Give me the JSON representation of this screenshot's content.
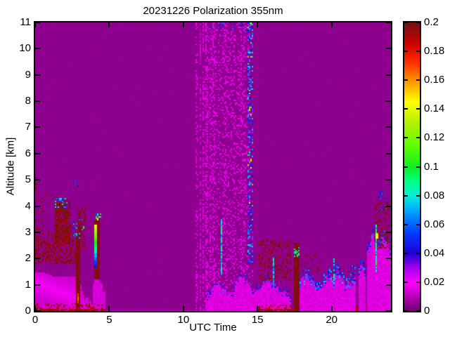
{
  "chart_data": {
    "type": "heatmap",
    "title": "20231226 Polarization 355nm",
    "xlabel": "UTC Time",
    "ylabel": "Altitude [km]",
    "xlim": [
      0,
      24
    ],
    "ylim": [
      0,
      11
    ],
    "xticks": [
      {
        "v": 0,
        "label": "0"
      },
      {
        "v": 5,
        "label": "5"
      },
      {
        "v": 10,
        "label": "10"
      },
      {
        "v": 15,
        "label": "15"
      },
      {
        "v": 20,
        "label": "20"
      }
    ],
    "yticks": [
      {
        "v": 0,
        "label": "0"
      },
      {
        "v": 1,
        "label": "1"
      },
      {
        "v": 2,
        "label": "2"
      },
      {
        "v": 3,
        "label": "3"
      },
      {
        "v": 4,
        "label": "4"
      },
      {
        "v": 5,
        "label": "5"
      },
      {
        "v": 6,
        "label": "6"
      },
      {
        "v": 7,
        "label": "7"
      },
      {
        "v": 8,
        "label": "8"
      },
      {
        "v": 9,
        "label": "9"
      },
      {
        "v": 10,
        "label": "10"
      },
      {
        "v": 11,
        "label": "11"
      }
    ],
    "colorbar": {
      "min": 0,
      "max": 0.2,
      "ticks": [
        {
          "v": 0,
          "label": "0"
        },
        {
          "v": 0.02,
          "label": "0.02"
        },
        {
          "v": 0.04,
          "label": "0.04"
        },
        {
          "v": 0.06,
          "label": "0.06"
        },
        {
          "v": 0.08,
          "label": "0.08"
        },
        {
          "v": 0.1,
          "label": "0.1"
        },
        {
          "v": 0.12,
          "label": "0.12"
        },
        {
          "v": 0.14,
          "label": "0.14"
        },
        {
          "v": 0.16,
          "label": "0.16"
        },
        {
          "v": 0.18,
          "label": "0.18"
        },
        {
          "v": 0.2,
          "label": "0.2"
        }
      ]
    },
    "colormap": [
      [
        0,
        "#6E006E"
      ],
      [
        0.02,
        "#FF00FF"
      ],
      [
        0.03,
        "#A000F0"
      ],
      [
        0.04,
        "#2000D8"
      ],
      [
        0.055,
        "#0040FF"
      ],
      [
        0.07,
        "#00AAFF"
      ],
      [
        0.08,
        "#00F0D8"
      ],
      [
        0.09,
        "#00FF80"
      ],
      [
        0.1,
        "#10F020"
      ],
      [
        0.115,
        "#60FF00"
      ],
      [
        0.13,
        "#B0F000"
      ],
      [
        0.145,
        "#FFFF00"
      ],
      [
        0.16,
        "#FF9000"
      ],
      [
        0.172,
        "#FF3000"
      ],
      [
        0.185,
        "#D00000"
      ],
      [
        0.2,
        "#6E1212"
      ]
    ],
    "background_value": 0.0045,
    "colors": {
      "page_background": "#FFFFFF",
      "axis": "#000000"
    },
    "features": [
      {
        "kind": "solid",
        "x": [
          0,
          24
        ],
        "y": [
          0,
          0.06
        ],
        "v": [
          0.011,
          0.013
        ]
      },
      {
        "kind": "solid",
        "x": [
          0,
          3.05
        ],
        "y": [
          0.06,
          1.35
        ],
        "v": [
          0.012,
          0.0145
        ]
      },
      {
        "kind": "glow",
        "x": [
          0,
          3.0
        ],
        "y": [
          0.1,
          1.5
        ],
        "line": [
          [
            0,
            1.12
          ],
          [
            2.6,
            0.55
          ]
        ],
        "width": 0.5,
        "v": [
          0.0135,
          0.0185
        ]
      },
      {
        "kind": "plume",
        "x": [
          3.05,
          4.72
        ],
        "y": [
          0,
          1.0
        ],
        "top": [
          0.92,
          0.5,
          0.34,
          0.42,
          0.88
        ],
        "v": [
          0.013,
          0.016
        ]
      },
      {
        "kind": "speckle",
        "x": [
          0,
          2.8
        ],
        "y": [
          1.8,
          3.6
        ],
        "density": 0.55,
        "v": [
          0.19,
          0.2
        ],
        "fade": [
          2.4,
          3.6
        ]
      },
      {
        "kind": "speckle",
        "x": [
          0,
          1.15
        ],
        "y": [
          3.6,
          4.55
        ],
        "density": 0.07,
        "v": [
          0.19,
          0.2
        ]
      },
      {
        "kind": "speckle",
        "x": [
          0,
          0.12
        ],
        "y": [
          4.6,
          5.15
        ],
        "density": 0.75,
        "v": [
          0.19,
          0.2
        ]
      },
      {
        "kind": "speckle",
        "x": [
          1.3,
          2.4
        ],
        "y": [
          2.55,
          4.2
        ],
        "density": 0.8,
        "v": [
          0.192,
          0.2
        ]
      },
      {
        "kind": "speckle",
        "x": [
          2.8,
          3.45
        ],
        "y": [
          2.4,
          3.95
        ],
        "density": 0.5,
        "v": [
          0.19,
          0.2
        ]
      },
      {
        "kind": "vline",
        "x": [
          2.72,
          3.0
        ],
        "y": [
          0,
          3.05
        ],
        "v": [
          0.194,
          0.2
        ]
      },
      {
        "kind": "vline",
        "x": [
          2.8,
          2.92
        ],
        "y": [
          0.3,
          0.7
        ],
        "v": [
          0.16,
          0.175
        ]
      },
      {
        "kind": "speckle",
        "x": [
          0,
          4.75
        ],
        "y": [
          0.12,
          0.3
        ],
        "density": 0.3,
        "v": [
          0.185,
          0.2
        ]
      },
      {
        "kind": "speckle",
        "x": [
          0,
          4.75
        ],
        "y": [
          0,
          0.12
        ],
        "density": 0.9,
        "v": [
          0.185,
          0.2
        ]
      },
      {
        "kind": "dots",
        "x": [
          1.35,
          2.2
        ],
        "y": [
          3.95,
          4.35
        ],
        "density": 0.45,
        "v": [
          0.035,
          0.09
        ]
      },
      {
        "kind": "dots",
        "x": [
          2.6,
          3.35
        ],
        "y": [
          2.8,
          3.5
        ],
        "density": 0.18,
        "v": [
          0.035,
          0.08
        ]
      },
      {
        "kind": "dots",
        "x": [
          2.65,
          2.9
        ],
        "y": [
          4.75,
          5.0
        ],
        "density": 0.3,
        "v": [
          0.04,
          0.06
        ]
      },
      {
        "kind": "plume",
        "x": [
          3.85,
          4.55
        ],
        "y": [
          0.3,
          1.4
        ],
        "top": [
          1.05,
          1.35,
          1.1
        ],
        "v": [
          0.0135,
          0.016
        ]
      },
      {
        "kind": "vline",
        "x": [
          4.02,
          4.38
        ],
        "y": [
          1.25,
          3.45
        ],
        "v": [
          0.194,
          0.2
        ]
      },
      {
        "kind": "gradline",
        "x": [
          4.02,
          4.16
        ],
        "y": [
          1.65,
          3.3
        ],
        "vb": 0.04,
        "vt": 0.145
      },
      {
        "kind": "dots",
        "x": [
          4.05,
          4.42
        ],
        "y": [
          3.4,
          3.75
        ],
        "density": 0.35,
        "v": [
          0.05,
          0.145
        ]
      },
      {
        "kind": "stripes",
        "x": [
          9.95,
          11.55
        ],
        "y": [
          0,
          11
        ],
        "colDensity": 0.3,
        "density": 0.45,
        "v": [
          0.012,
          0.018
        ]
      },
      {
        "kind": "stripes",
        "x": [
          11.55,
          14.7
        ],
        "y": [
          0,
          11
        ],
        "colDensity": 0.92,
        "density": 0.4,
        "v": [
          0.012,
          0.019
        ]
      },
      {
        "kind": "plume",
        "x": [
          11.45,
          17.3
        ],
        "y": [
          0,
          1.6
        ],
        "top": [
          0.45,
          1.15,
          0.6,
          1.45,
          0.75,
          1.2,
          0.9,
          0.5
        ],
        "v": [
          0.013,
          0.018
        ],
        "topdots": {
          "density": 0.22,
          "v": [
            0.035,
            0.06
          ],
          "band": 0.16
        }
      },
      {
        "kind": "speckle",
        "x": [
          15.1,
          17.3
        ],
        "y": [
          1.2,
          2.7
        ],
        "density": 0.32,
        "v": [
          0.19,
          0.2
        ]
      },
      {
        "kind": "dots",
        "x": [
          14.35,
          14.72
        ],
        "y": [
          1.8,
          11
        ],
        "density": 0.3,
        "v": [
          0.035,
          0.08
        ]
      },
      {
        "kind": "dots",
        "x": [
          14.35,
          14.72
        ],
        "y": [
          4,
          11
        ],
        "density": 0.05,
        "v": [
          0.1,
          0.16
        ]
      },
      {
        "kind": "dots",
        "x": [
          11.8,
          14.3
        ],
        "y": [
          10.7,
          11
        ],
        "density": 0.12,
        "v": [
          0.03,
          0.07
        ]
      },
      {
        "kind": "vline",
        "x": [
          12.52,
          12.64
        ],
        "y": [
          1.4,
          3.5
        ],
        "v": [
          0.06,
          0.105
        ]
      },
      {
        "kind": "vline",
        "x": [
          16.05,
          16.16
        ],
        "y": [
          0.9,
          2.1
        ],
        "v": [
          0.05,
          0.09
        ]
      },
      {
        "kind": "speckle",
        "x": [
          15,
          24
        ],
        "y": [
          0.12,
          0.28
        ],
        "density": 0.25,
        "v": [
          0.185,
          0.2
        ]
      },
      {
        "kind": "speckle",
        "x": [
          15,
          24
        ],
        "y": [
          0,
          0.12
        ],
        "density": 0.85,
        "v": [
          0.185,
          0.2
        ]
      },
      {
        "kind": "vline",
        "x": [
          17.5,
          17.82
        ],
        "y": [
          0,
          2.6
        ],
        "v": [
          0.194,
          0.2
        ]
      },
      {
        "kind": "dots",
        "x": [
          17.45,
          17.8
        ],
        "y": [
          2.1,
          2.45
        ],
        "density": 0.5,
        "v": [
          0.07,
          0.115
        ]
      },
      {
        "kind": "plume",
        "x": [
          17.82,
          21.65
        ],
        "y": [
          0,
          1.8
        ],
        "top": [
          1.15,
          1.4,
          0.95,
          1.3,
          1.55,
          1.05,
          1.3
        ],
        "v": [
          0.013,
          0.018
        ],
        "topdots": {
          "density": 0.4,
          "v": [
            0.035,
            0.075
          ],
          "band": 0.22
        }
      },
      {
        "kind": "speckle",
        "x": [
          17.9,
          19.3
        ],
        "y": [
          1.5,
          2.25
        ],
        "density": 0.1,
        "v": [
          0.19,
          0.2
        ]
      },
      {
        "kind": "vline",
        "x": [
          20.12,
          20.24
        ],
        "y": [
          0.9,
          2.05
        ],
        "v": [
          0.05,
          0.095
        ]
      },
      {
        "kind": "dots",
        "x": [
          21.25,
          21.6
        ],
        "y": [
          1.35,
          1.8
        ],
        "density": 0.35,
        "v": [
          0.038,
          0.07
        ]
      },
      {
        "kind": "plume",
        "x": [
          21.85,
          22.3
        ],
        "y": [
          0,
          2.0
        ],
        "top": [
          1.55,
          1.95,
          1.25
        ],
        "v": [
          0.013,
          0.0175
        ],
        "topdots": {
          "density": 0.45,
          "v": [
            0.035,
            0.07
          ],
          "band": 0.22
        }
      },
      {
        "kind": "plume",
        "x": [
          22.4,
          24
        ],
        "y": [
          0,
          3.05
        ],
        "top": [
          2.25,
          2.95,
          2.45,
          2.85,
          2.35
        ],
        "v": [
          0.013,
          0.018
        ],
        "topdots": {
          "density": 0.35,
          "v": [
            0.035,
            0.07
          ],
          "band": 0.25
        }
      },
      {
        "kind": "speckle",
        "x": [
          22.85,
          23.95
        ],
        "y": [
          2.4,
          4.15
        ],
        "density": 0.32,
        "v": [
          0.19,
          0.2
        ]
      },
      {
        "kind": "vline",
        "x": [
          22.96,
          23.08
        ],
        "y": [
          1.5,
          3.3
        ],
        "v": [
          0.06,
          0.11
        ]
      },
      {
        "kind": "dots",
        "x": [
          23.0,
          23.1
        ],
        "y": [
          2.8,
          3.0
        ],
        "density": 0.8,
        "v": [
          0.13,
          0.15
        ]
      },
      {
        "kind": "dots",
        "x": [
          23.15,
          23.8
        ],
        "y": [
          3.8,
          4.6
        ],
        "density": 0.15,
        "v": [
          0.035,
          0.06
        ]
      },
      {
        "kind": "stripes",
        "x": [
          23.82,
          24
        ],
        "y": [
          0,
          4.6
        ],
        "colDensity": 0.9,
        "density": 0.35,
        "v": [
          0.012,
          0.017
        ]
      }
    ]
  }
}
